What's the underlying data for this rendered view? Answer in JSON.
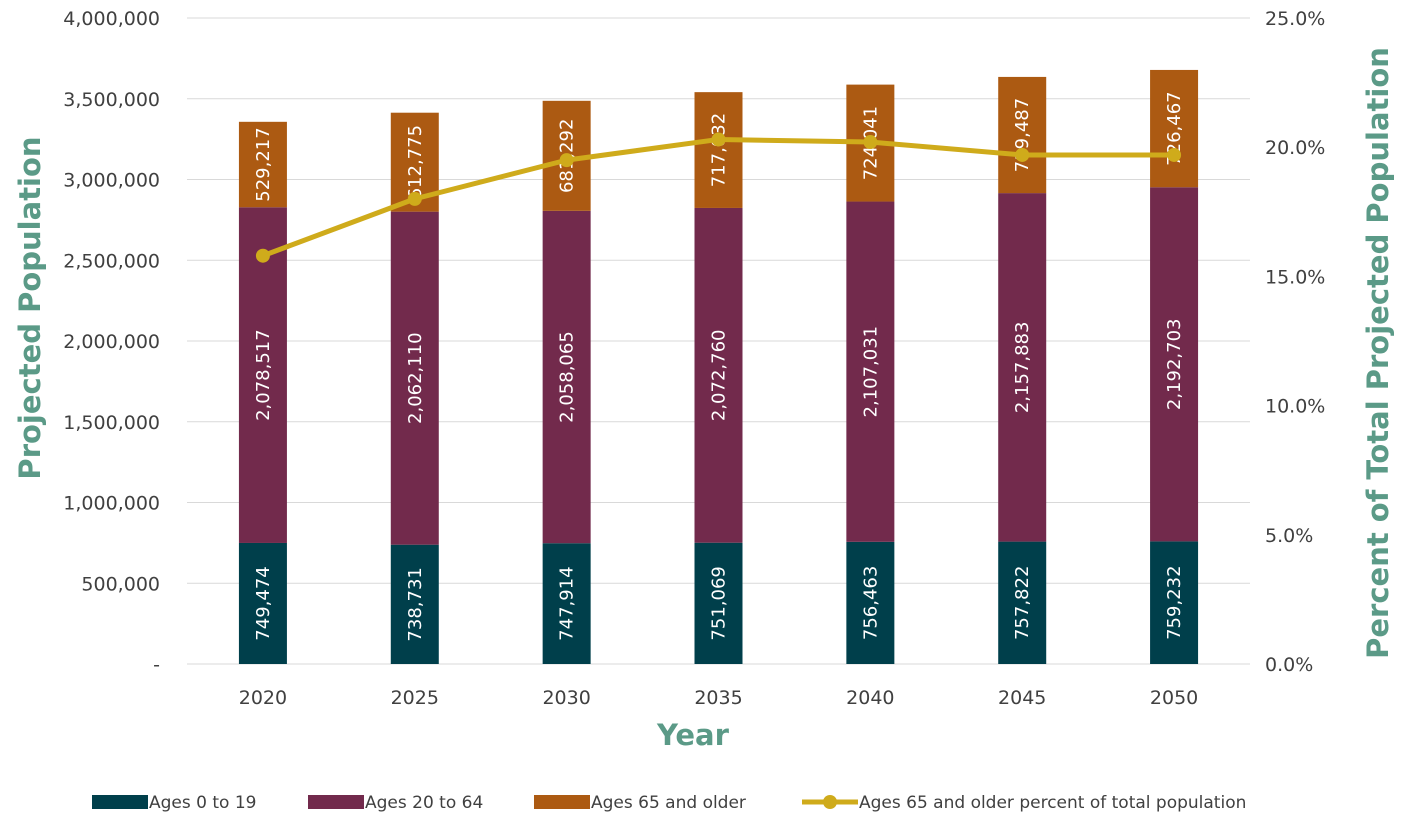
{
  "chart_data": {
    "type": "bar",
    "stacked": true,
    "categories": [
      "2020",
      "2025",
      "2030",
      "2035",
      "2040",
      "2045",
      "2050"
    ],
    "series": [
      {
        "name": "Ages 0 to 19",
        "color": "#003f4b",
        "values": [
          749474,
          738731,
          747914,
          751069,
          756463,
          757822,
          759232
        ],
        "labels": [
          "749,474",
          "738,731",
          "747,914",
          "751,069",
          "756,463",
          "757,822",
          "759,232"
        ]
      },
      {
        "name": "Ages 20 to 64",
        "color": "#722a4c",
        "values": [
          2078517,
          2062110,
          2058065,
          2072760,
          2107031,
          2157883,
          2192703
        ],
        "labels": [
          "2,078,517",
          "2,062,110",
          "2,058,065",
          "2,072,760",
          "2,107,031",
          "2,157,883",
          "2,192,703"
        ]
      },
      {
        "name": "Ages 65 and older",
        "color": "#ac5a12",
        "values": [
          529217,
          612775,
          681292,
          717032,
          724041,
          719487,
          726467
        ],
        "labels": [
          "529,217",
          "612,775",
          "681,292",
          "717,032",
          "724,041",
          "719,487",
          "726,467"
        ]
      }
    ],
    "line_series": {
      "name": "Ages 65 and older percent of total population",
      "color": "#cfab1b",
      "axis": "right",
      "values": [
        15.8,
        18.0,
        19.5,
        20.3,
        20.2,
        19.7,
        19.7
      ]
    },
    "xlabel": "Year",
    "ylabel": "Projected Population",
    "y2label": "Percent of Total Projected Population",
    "ylim": [
      0,
      4000000
    ],
    "y2lim": [
      0,
      25
    ],
    "yticks": [
      {
        "value": 0,
        "label": "-"
      },
      {
        "value": 500000,
        "label": "500,000"
      },
      {
        "value": 1000000,
        "label": "1,000,000"
      },
      {
        "value": 1500000,
        "label": "1,500,000"
      },
      {
        "value": 2000000,
        "label": "2,000,000"
      },
      {
        "value": 2500000,
        "label": "2,500,000"
      },
      {
        "value": 3000000,
        "label": "3,000,000"
      },
      {
        "value": 3500000,
        "label": "3,500,000"
      },
      {
        "value": 4000000,
        "label": "4,000,000"
      }
    ],
    "y2ticks": [
      {
        "value": 0,
        "label": "0.0%"
      },
      {
        "value": 5,
        "label": "5.0%"
      },
      {
        "value": 10,
        "label": "10.0%"
      },
      {
        "value": 15,
        "label": "15.0%"
      },
      {
        "value": 20,
        "label": "20.0%"
      },
      {
        "value": 25,
        "label": "25.0%"
      }
    ],
    "grid": true,
    "legend_position": "bottom"
  }
}
